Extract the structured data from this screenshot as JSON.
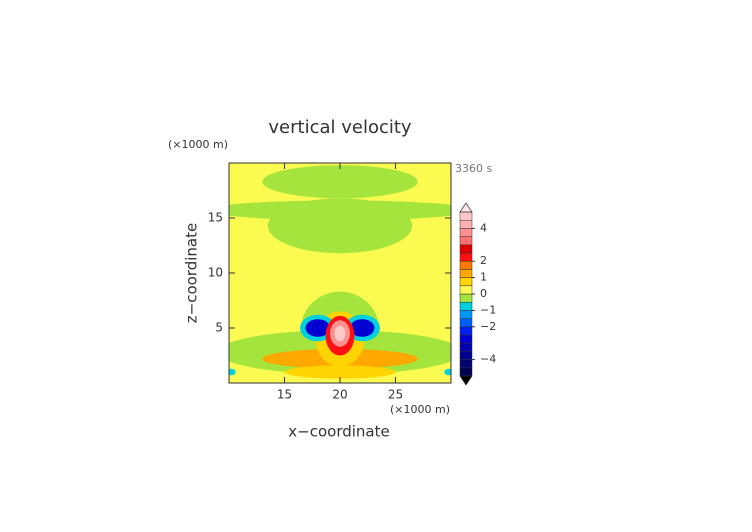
{
  "chart_data": {
    "type": "contour",
    "title": "vertical velocity",
    "x_label": "x−coordinate",
    "y_label": "z−coordinate",
    "x_unit": "(×1000 m)",
    "y_unit": "(×1000 m)",
    "time_label": "3360 s",
    "xlim": [
      10,
      30
    ],
    "ylim": [
      0,
      20
    ],
    "xticks": [
      15,
      20,
      25
    ],
    "yticks": [
      5,
      10,
      15
    ],
    "background_value": 0.3,
    "features": [
      {
        "x": 20,
        "z": 18.3,
        "rx": 7,
        "rz": 1.5,
        "value": -0.2
      },
      {
        "x": 20,
        "z": 14.3,
        "rx": 6.5,
        "rz": 2.5,
        "value": -0.2
      },
      {
        "x": 20,
        "z": 15.7,
        "rx": 12,
        "rz": 0.9,
        "value": -0.2
      },
      {
        "x": 20,
        "z": 5,
        "rx": 3.5,
        "rz": 3.3,
        "value": -0.2
      },
      {
        "x": 20,
        "z": 2.8,
        "rx": 11,
        "rz": 2,
        "value": -0.2
      },
      {
        "x": 20,
        "z": 2.2,
        "rx": 7,
        "rz": 0.9,
        "value": 1.2
      },
      {
        "x": 20,
        "z": 1,
        "rx": 5,
        "rz": 0.6,
        "value": 0.8
      },
      {
        "x": 20,
        "z": 4,
        "rx": 2.2,
        "rz": 2.5,
        "value": 0.6
      },
      {
        "x": 18,
        "z": 5,
        "rx": 1.6,
        "rz": 1.2,
        "value": -0.8
      },
      {
        "x": 22,
        "z": 5,
        "rx": 1.6,
        "rz": 1.2,
        "value": -0.8
      },
      {
        "x": 18,
        "z": 5,
        "rx": 1.1,
        "rz": 0.8,
        "value": -2.5
      },
      {
        "x": 22,
        "z": 5,
        "rx": 1.1,
        "rz": 0.8,
        "value": -2.5
      },
      {
        "x": 20,
        "z": 4.3,
        "rx": 1.3,
        "rz": 1.8,
        "value": 2.3
      },
      {
        "x": 20,
        "z": 4.5,
        "rx": 0.9,
        "rz": 1.2,
        "value": 3.8
      },
      {
        "x": 20,
        "z": 4.5,
        "rx": 0.5,
        "rz": 0.7,
        "value": 4.7
      },
      {
        "x": 10.2,
        "z": 1,
        "rx": 0.4,
        "rz": 0.3,
        "value": -0.8
      },
      {
        "x": 29.8,
        "z": 1,
        "rx": 0.4,
        "rz": 0.3,
        "value": -0.8
      }
    ],
    "levels": [
      -5,
      -4.5,
      -4,
      -3.5,
      -3,
      -2.5,
      -2,
      -1.5,
      -1,
      -0.5,
      0,
      0.5,
      1,
      1.5,
      2,
      2.5,
      3,
      3.5,
      4,
      4.5,
      5
    ],
    "colors": [
      "#000050",
      "#000070",
      "#000090",
      "#0000b0",
      "#0000d0",
      "#0020f0",
      "#0060ff",
      "#0098ff",
      "#00d0e0",
      "#a4e43c",
      "#fafa50",
      "#ffd400",
      "#ffa800",
      "#ff7800",
      "#ff1010",
      "#e00000",
      "#ff7070",
      "#ff9090",
      "#ffb0b0",
      "#ffc8c8"
    ],
    "under_color": "#000000",
    "over_color": "#ffe8e8",
    "cticks": [
      4,
      2,
      1,
      0,
      {
        "value": -1,
        "label": "−1"
      },
      {
        "value": -2,
        "label": "−2"
      },
      {
        "value": -4,
        "label": "−4"
      }
    ]
  }
}
